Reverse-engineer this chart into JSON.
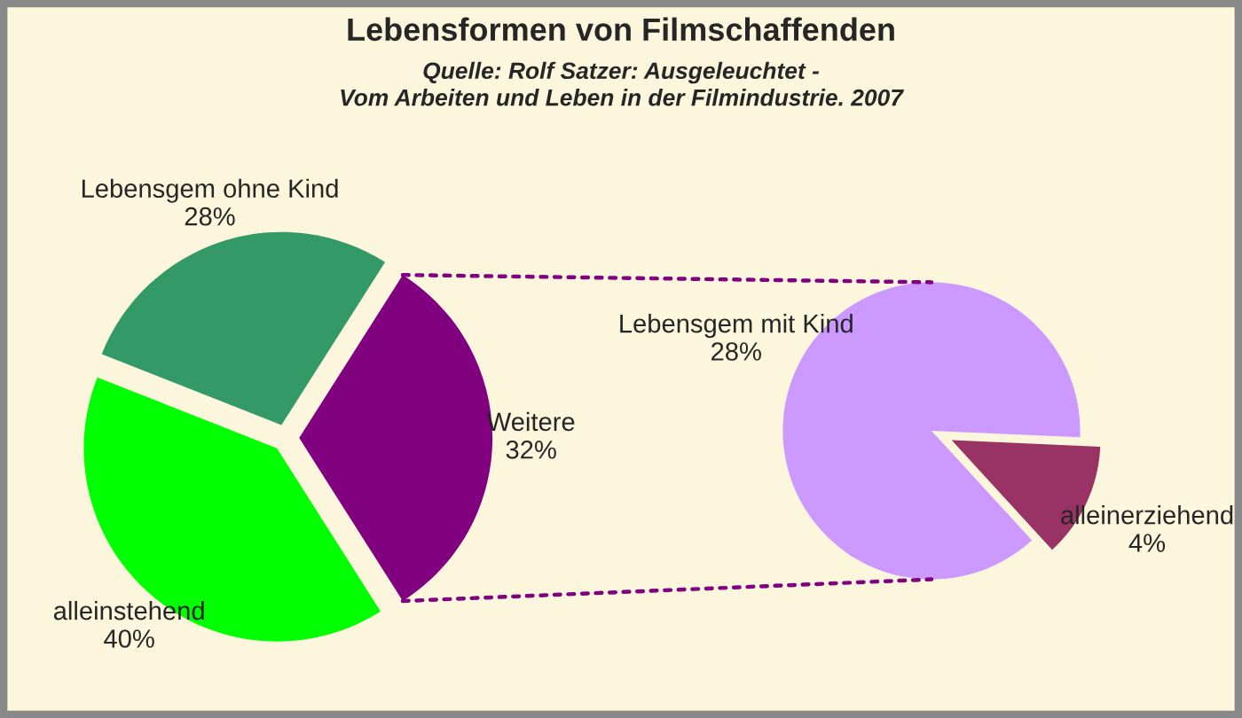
{
  "chart_data": [
    {
      "type": "pie",
      "title": "Lebensformen von Filmschaffenden",
      "subtitle": "Quelle: Rolf Satzer: Ausgeleuchtet -\nVom Arbeiten und Leben in der Filmindustrie. 2007",
      "categories": [
        "Lebensgem ohne Kind",
        "alleinstehend",
        "Weitere"
      ],
      "values": [
        28,
        40,
        32
      ],
      "value_labels": [
        "28%",
        "40%",
        "32%"
      ],
      "colors": [
        "#339966",
        "#00ff00",
        "#800080"
      ]
    },
    {
      "type": "pie",
      "categories": [
        "Lebensgem mit Kind",
        "alleinerziehend"
      ],
      "values": [
        28,
        4
      ],
      "value_labels": [
        "28%",
        "4%"
      ],
      "colors": [
        "#cc99ff",
        "#993366"
      ]
    }
  ]
}
